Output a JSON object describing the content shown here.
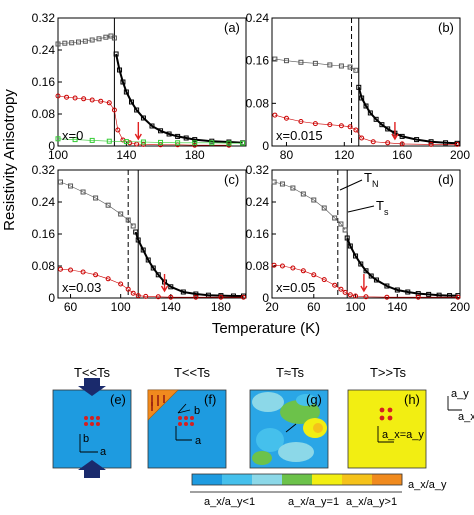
{
  "figure": {
    "ylabel": "Resistivity Anisotropy",
    "xlabel": "Temperature (K)"
  },
  "chart_data": [
    {
      "type": "scatter",
      "panel": "(a)",
      "label": "x=0",
      "xlim": [
        100,
        210
      ],
      "ylim": [
        0,
        0.32
      ],
      "xticks": [
        "100",
        "140",
        "180"
      ],
      "xtick_values": [
        100,
        140,
        180
      ],
      "yticks": [
        "0",
        "0.08",
        "0.16",
        "0.24",
        "0.32"
      ],
      "ytick_values": [
        0,
        0.08,
        0.16,
        0.24,
        0.32
      ],
      "vlines": [
        {
          "x": 133,
          "style": "solid"
        }
      ],
      "arrow_x": 147,
      "series": [
        {
          "color": "#555555",
          "marker": "open-square",
          "x": [
            100,
            104,
            108,
            112,
            116,
            120,
            124,
            128,
            131,
            133
          ],
          "y": [
            0.255,
            0.257,
            0.258,
            0.26,
            0.262,
            0.265,
            0.268,
            0.272,
            0.275,
            0.27
          ]
        },
        {
          "color": "#000000",
          "marker": "open-square",
          "x": [
            134,
            136,
            138,
            140,
            143,
            146,
            150,
            155,
            160,
            165,
            170,
            175,
            180,
            190,
            200,
            208
          ],
          "y": [
            0.23,
            0.19,
            0.16,
            0.135,
            0.11,
            0.09,
            0.07,
            0.05,
            0.038,
            0.03,
            0.024,
            0.02,
            0.016,
            0.012,
            0.01,
            0.008
          ]
        },
        {
          "color": "#cc0000",
          "marker": "open-circle",
          "x": [
            100,
            105,
            110,
            115,
            120,
            125,
            130,
            133,
            135,
            138,
            142,
            146,
            150,
            160,
            170,
            180,
            200
          ],
          "y": [
            0.125,
            0.122,
            0.12,
            0.118,
            0.115,
            0.112,
            0.108,
            0.09,
            0.04,
            0.015,
            0.008,
            0.005,
            0.004,
            0.003,
            0.003,
            0.002,
            0.002
          ]
        },
        {
          "color": "#33cc33",
          "marker": "open-square",
          "x": [
            100,
            110,
            120,
            130,
            140,
            150,
            160,
            170,
            180,
            190,
            200,
            208
          ],
          "y": [
            0.018,
            0.016,
            0.014,
            0.012,
            0.011,
            0.01,
            0.009,
            0.008,
            0.008,
            0.008,
            0.007,
            0.007
          ]
        }
      ]
    },
    {
      "type": "scatter",
      "panel": "(b)",
      "label": "x=0.015",
      "xlim": [
        70,
        200
      ],
      "ylim": [
        0,
        0.24
      ],
      "xticks": [
        "80",
        "120",
        "160",
        "200"
      ],
      "xtick_values": [
        80,
        120,
        160,
        200
      ],
      "yticks": [
        "0",
        "0.08",
        "0.16",
        "0.24"
      ],
      "ytick_values": [
        0,
        0.08,
        0.16,
        0.24
      ],
      "vlines": [
        {
          "x": 125,
          "style": "dashed"
        },
        {
          "x": 130,
          "style": "solid"
        }
      ],
      "arrow_x": 155,
      "series": [
        {
          "color": "#555555",
          "marker": "open-square",
          "x": [
            72,
            80,
            90,
            100,
            110,
            118,
            124,
            128
          ],
          "y": [
            0.163,
            0.16,
            0.157,
            0.155,
            0.152,
            0.15,
            0.148,
            0.142
          ]
        },
        {
          "color": "#000000",
          "marker": "open-square",
          "x": [
            130,
            132,
            135,
            138,
            142,
            146,
            150,
            155,
            160,
            170,
            180,
            190,
            198
          ],
          "y": [
            0.11,
            0.09,
            0.075,
            0.062,
            0.05,
            0.04,
            0.032,
            0.024,
            0.018,
            0.012,
            0.008,
            0.006,
            0.005
          ]
        },
        {
          "color": "#cc0000",
          "marker": "open-circle",
          "x": [
            72,
            80,
            90,
            100,
            110,
            118,
            124,
            128,
            132,
            140,
            150,
            160,
            180,
            198
          ],
          "y": [
            0.058,
            0.052,
            0.046,
            0.042,
            0.04,
            0.038,
            0.036,
            0.03,
            0.015,
            0.008,
            0.006,
            0.004,
            0.003,
            0.003
          ]
        }
      ]
    },
    {
      "type": "scatter",
      "panel": "(c)",
      "label": "x=0.03",
      "xlim": [
        50,
        200
      ],
      "ylim": [
        0,
        0.32
      ],
      "xticks": [
        "60",
        "100",
        "140",
        "180"
      ],
      "xtick_values": [
        60,
        100,
        140,
        180
      ],
      "yticks": [
        "0",
        "0.08",
        "0.16",
        "0.24",
        "0.32"
      ],
      "ytick_values": [
        0,
        0.08,
        0.16,
        0.24,
        0.32
      ],
      "vlines": [
        {
          "x": 106,
          "style": "dashed"
        },
        {
          "x": 114,
          "style": "solid"
        }
      ],
      "arrow_x": 135,
      "series": [
        {
          "color": "#555555",
          "marker": "open-square",
          "x": [
            52,
            60,
            70,
            80,
            90,
            100,
            106,
            110
          ],
          "y": [
            0.29,
            0.28,
            0.265,
            0.25,
            0.232,
            0.21,
            0.195,
            0.18
          ]
        },
        {
          "color": "#000000",
          "marker": "open-square",
          "x": [
            112,
            114,
            118,
            122,
            126,
            130,
            135,
            140,
            150,
            160,
            170,
            180,
            190,
            198
          ],
          "y": [
            0.165,
            0.145,
            0.12,
            0.095,
            0.075,
            0.058,
            0.04,
            0.028,
            0.015,
            0.01,
            0.007,
            0.006,
            0.005,
            0.005
          ]
        },
        {
          "color": "#cc0000",
          "marker": "open-circle",
          "x": [
            52,
            60,
            70,
            80,
            90,
            100,
            106,
            110,
            114,
            120,
            130,
            140,
            160,
            180,
            198
          ],
          "y": [
            0.072,
            0.07,
            0.065,
            0.058,
            0.048,
            0.035,
            0.022,
            0.012,
            0.006,
            0.004,
            0.003,
            0.002,
            0.002,
            0.002,
            0.002
          ]
        }
      ]
    },
    {
      "type": "scatter",
      "panel": "(d)",
      "label": "x=0.05",
      "xlim": [
        20,
        200
      ],
      "ylim": [
        0,
        0.32
      ],
      "xticks": [
        "20",
        "60",
        "100",
        "140",
        "200"
      ],
      "xtick_values": [
        20,
        60,
        100,
        140,
        200
      ],
      "yticks": [
        "0",
        "0.08",
        "0.16",
        "0.24",
        "0.32"
      ],
      "ytick_values": [
        0,
        0.08,
        0.16,
        0.24,
        0.32
      ],
      "vlines": [
        {
          "x": 83,
          "style": "dashed"
        },
        {
          "x": 92,
          "style": "solid"
        }
      ],
      "arrow_x": 108,
      "annotations": [
        "T_N",
        "T_s"
      ],
      "series": [
        {
          "color": "#555555",
          "marker": "open-square",
          "x": [
            22,
            30,
            40,
            50,
            60,
            70,
            80,
            86,
            90
          ],
          "y": [
            0.29,
            0.285,
            0.275,
            0.26,
            0.245,
            0.225,
            0.2,
            0.185,
            0.17
          ]
        },
        {
          "color": "#000000",
          "marker": "open-square",
          "x": [
            92,
            95,
            100,
            105,
            110,
            115,
            120,
            130,
            140,
            150,
            160,
            170,
            180,
            190,
            198
          ],
          "y": [
            0.15,
            0.13,
            0.105,
            0.085,
            0.068,
            0.055,
            0.045,
            0.03,
            0.02,
            0.015,
            0.011,
            0.009,
            0.007,
            0.006,
            0.006
          ]
        },
        {
          "color": "#cc0000",
          "marker": "open-circle",
          "x": [
            22,
            30,
            40,
            50,
            60,
            70,
            80,
            86,
            90,
            95,
            100,
            110,
            130,
            160,
            198
          ],
          "y": [
            0.082,
            0.08,
            0.075,
            0.068,
            0.058,
            0.046,
            0.032,
            0.022,
            0.014,
            0.008,
            0.005,
            0.003,
            0.002,
            0.002,
            0.002
          ]
        }
      ]
    }
  ],
  "bottom": {
    "panels": [
      {
        "title": "T<<Ts",
        "tag": "(e)",
        "color": "#1e9be0",
        "axis1": "b",
        "axis2": "a"
      },
      {
        "title": "T<<Ts",
        "tag": "(f)",
        "color": "#1e9be0",
        "corner_color": "#f08a1e",
        "axis1": "b",
        "axis2": "a"
      },
      {
        "title": "T≈Ts",
        "tag": "(g)",
        "color": "#2aa6e6"
      },
      {
        "title": "T>>Ts",
        "tag": "(h)",
        "color": "#f2ee12",
        "relation": "a_x=a_y"
      }
    ],
    "axes_tr": {
      "y": "a_y",
      "x": "a_x"
    },
    "colorbar": {
      "colors": [
        "#1e9be0",
        "#45c0ec",
        "#8cd8e8",
        "#6cc24a",
        "#f2ee12",
        "#f5c21a",
        "#f08a1e"
      ],
      "end_label": "a_x/a_y",
      "labels": [
        "a_x/a_y<1",
        "a_x/a_y=1",
        "a_x/a_y>1"
      ]
    }
  }
}
